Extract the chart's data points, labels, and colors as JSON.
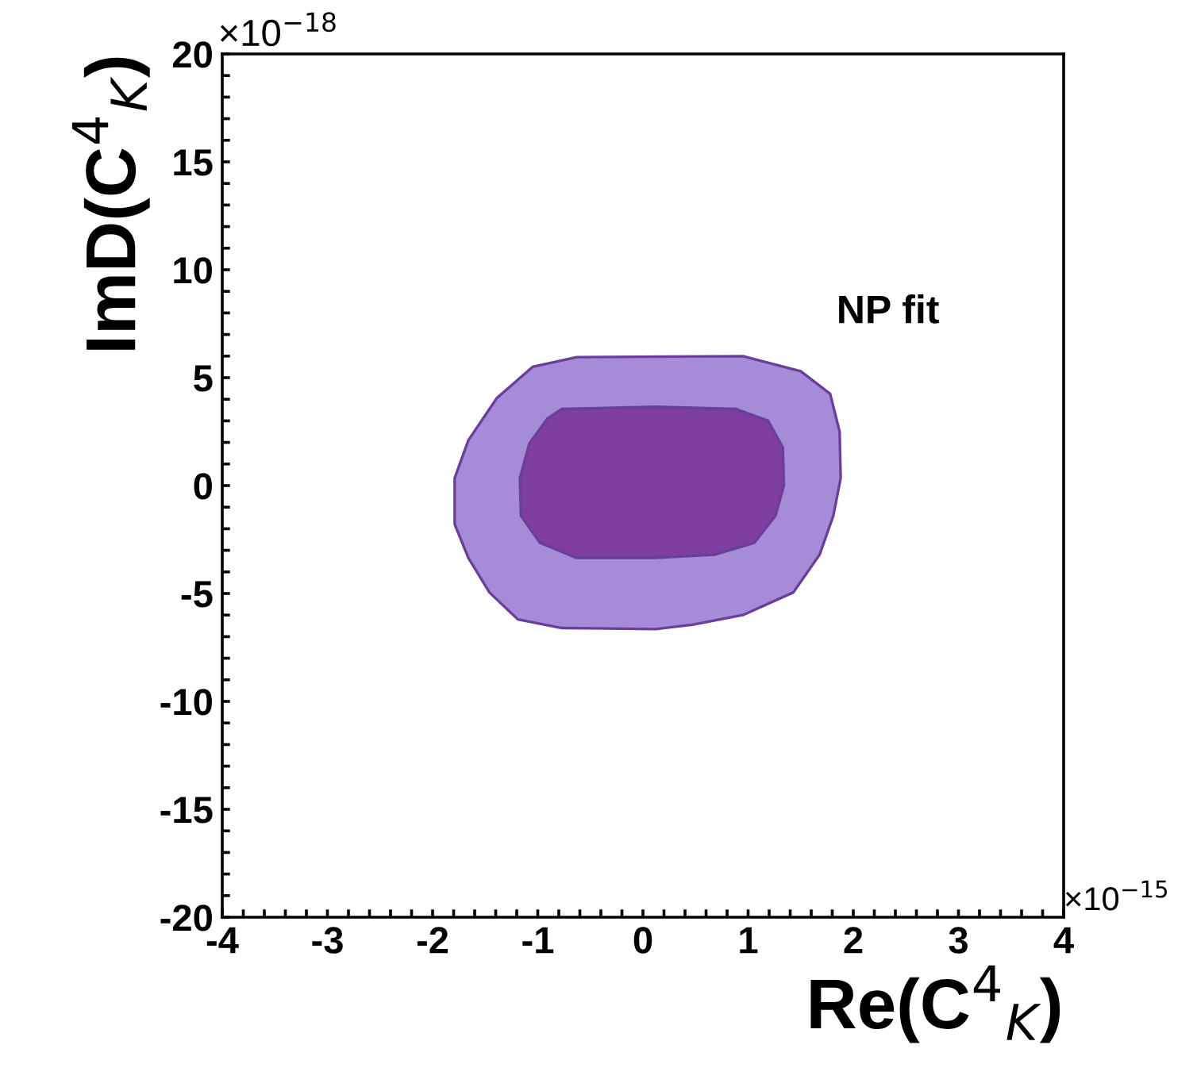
{
  "chart_data": {
    "type": "area",
    "xlabel": "Re(C$^{4}$$_{K}$)",
    "ylabel": "ImD(C$^{4}$$_{K}$)",
    "annotations": [
      "NP fit",
      "×10$^{−18}$",
      "×10$^{−15}$"
    ],
    "xlim": [
      -4,
      4
    ],
    "ylim": [
      -20,
      20
    ],
    "xticks": [
      -4,
      {
        "value": -3.8,
        "label": null
      },
      {
        "value": -3.6,
        "label": null
      },
      {
        "value": -3.4,
        "label": null
      },
      {
        "value": -3.2,
        "label": null
      },
      -3,
      {
        "value": -2.8,
        "label": null
      },
      {
        "value": -2.6,
        "label": null
      },
      {
        "value": -2.4,
        "label": null
      },
      {
        "value": -2.2,
        "label": null
      },
      -2,
      {
        "value": -1.8,
        "label": null
      },
      {
        "value": -1.6,
        "label": null
      },
      {
        "value": -1.4,
        "label": null
      },
      {
        "value": -1.2,
        "label": null
      },
      -1,
      {
        "value": -0.8,
        "label": null
      },
      {
        "value": -0.6,
        "label": null
      },
      {
        "value": -0.4,
        "label": null
      },
      {
        "value": -0.2,
        "label": null
      },
      0,
      {
        "value": 0.2,
        "label": null
      },
      {
        "value": 0.4,
        "label": null
      },
      {
        "value": 0.6,
        "label": null
      },
      {
        "value": 0.8,
        "label": null
      },
      1,
      {
        "value": 1.2,
        "label": null
      },
      {
        "value": 1.4,
        "label": null
      },
      {
        "value": 1.6,
        "label": null
      },
      {
        "value": 1.8,
        "label": null
      },
      2,
      {
        "value": 2.2,
        "label": null
      },
      {
        "value": 2.4,
        "label": null
      },
      {
        "value": 2.6,
        "label": null
      },
      {
        "value": 2.8,
        "label": null
      },
      3,
      {
        "value": 3.2,
        "label": null
      },
      {
        "value": 3.4,
        "label": null
      },
      {
        "value": 3.6,
        "label": null
      },
      {
        "value": 3.8,
        "label": null
      },
      4
    ],
    "yticks": [
      -20,
      {
        "value": -19,
        "label": null
      },
      {
        "value": -18,
        "label": null
      },
      {
        "value": -17,
        "label": null
      },
      {
        "value": -16,
        "label": null
      },
      -15,
      {
        "value": -14,
        "label": null
      },
      {
        "value": -13,
        "label": null
      },
      {
        "value": -12,
        "label": null
      },
      {
        "value": -11,
        "label": null
      },
      -10,
      {
        "value": -9,
        "label": null
      },
      {
        "value": -8,
        "label": null
      },
      {
        "value": -7,
        "label": null
      },
      {
        "value": -6,
        "label": null
      },
      -5,
      {
        "value": -4,
        "label": null
      },
      {
        "value": -3,
        "label": null
      },
      {
        "value": -2,
        "label": null
      },
      {
        "value": -1,
        "label": null
      },
      0,
      {
        "value": 1,
        "label": null
      },
      {
        "value": 2,
        "label": null
      },
      {
        "value": 3,
        "label": null
      },
      {
        "value": 4,
        "label": null
      },
      5,
      {
        "value": 6,
        "label": null
      },
      {
        "value": 7,
        "label": null
      },
      {
        "value": 8,
        "label": null
      },
      {
        "value": 9,
        "label": null
      },
      10,
      {
        "value": 11,
        "label": null
      },
      {
        "value": 12,
        "label": null
      },
      {
        "value": 13,
        "label": null
      },
      {
        "value": 14,
        "label": null
      },
      15,
      {
        "value": 16,
        "label": null
      },
      {
        "value": 17,
        "label": null
      },
      {
        "value": 18,
        "label": null
      },
      {
        "value": 19,
        "label": null
      },
      20
    ],
    "series": [
      {
        "color": "#a58bd8",
        "x": [
          -0.63,
          0.95,
          1.5,
          1.78,
          1.87,
          1.88,
          1.81,
          1.68,
          1.43,
          0.95,
          0.47,
          0.12,
          -0.77,
          -1.19,
          -1.46,
          -1.66,
          -1.79,
          -1.79,
          -1.66,
          -1.39,
          -1.05
        ],
        "values": [
          5.95,
          6.0,
          5.3,
          4.25,
          2.5,
          0.35,
          -1.4,
          -3.2,
          -4.95,
          -6.0,
          -6.45,
          -6.65,
          -6.6,
          -6.2,
          -4.95,
          -3.35,
          -1.8,
          0.35,
          2.1,
          4.05,
          5.5
        ]
      },
      {
        "color": "#7e3fa0",
        "x": [
          -0.77,
          0.12,
          0.88,
          1.19,
          1.33,
          1.34,
          1.26,
          1.06,
          0.68,
          0.12,
          -0.63,
          -0.98,
          -1.16,
          -1.17,
          -1.08,
          -0.91
        ],
        "values": [
          3.55,
          3.65,
          3.55,
          3.0,
          1.77,
          0,
          -1.4,
          -2.65,
          -3.2,
          -3.35,
          -3.35,
          -2.65,
          -1.4,
          0.35,
          1.95,
          3.1
        ]
      }
    ]
  }
}
